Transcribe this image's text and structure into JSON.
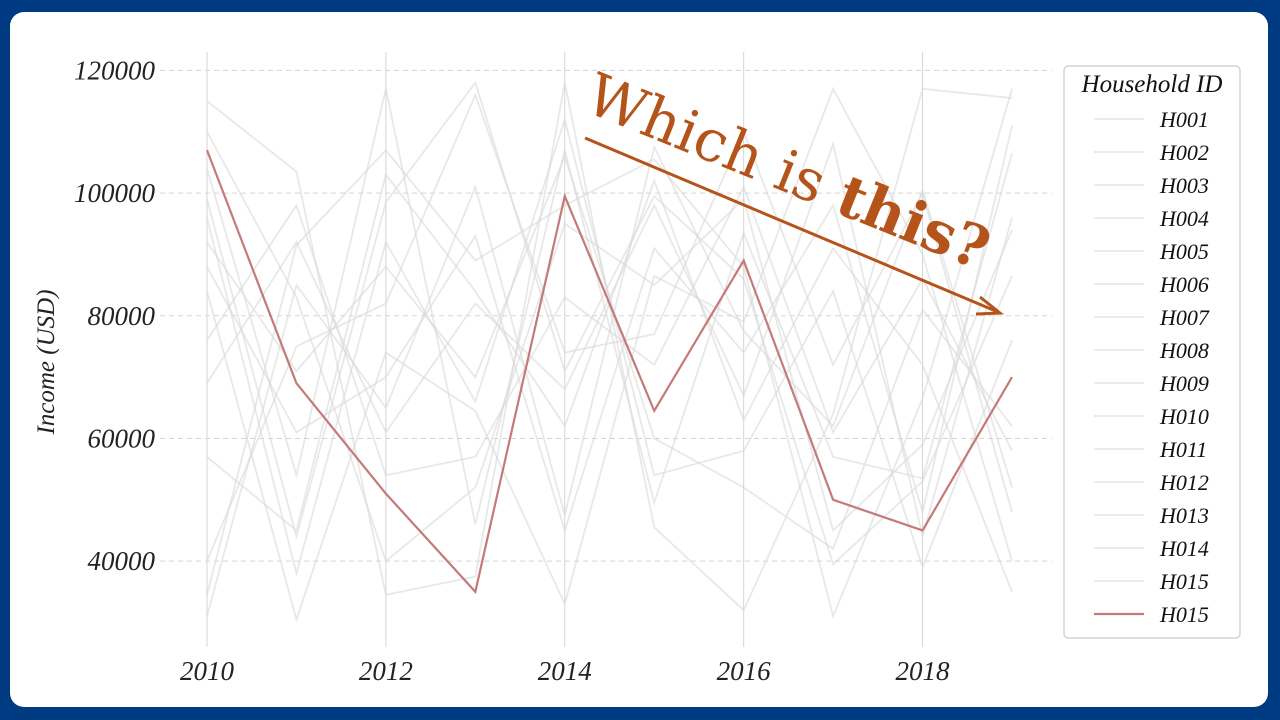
{
  "chart_data": {
    "type": "line",
    "title": "",
    "xlabel": "",
    "ylabel": "Income (USD)",
    "xlim": [
      2010,
      2019
    ],
    "ylim": [
      26000,
      123000
    ],
    "x_ticks": [
      2010,
      2012,
      2014,
      2016,
      2018
    ],
    "y_ticks": [
      40000,
      60000,
      80000,
      100000,
      120000
    ],
    "grid": "y dashed, x solid",
    "legend": {
      "title": "Household ID",
      "placement": "top-right",
      "entries": [
        "H001",
        "H002",
        "H003",
        "H004",
        "H005",
        "H006",
        "H007",
        "H008",
        "H009",
        "H010",
        "H011",
        "H012",
        "H013",
        "H014",
        "H015",
        "H015"
      ]
    },
    "annotation": {
      "text_regular": "Which is ",
      "text_bold": "this?",
      "color": "#b5541a"
    },
    "colors": {
      "background_lines": "#d9d9d9",
      "highlight": "#c47a78",
      "grid": "#d5d5d5",
      "frame": "#003a80"
    },
    "x": [
      2010,
      2011,
      2012,
      2013,
      2014,
      2015,
      2016,
      2017,
      2018,
      2019
    ],
    "highlight_series": {
      "name": "H015",
      "values": [
        107000,
        69000,
        51000,
        35000,
        99500,
        64500,
        89000,
        50000,
        45000,
        70000
      ]
    },
    "series": [
      {
        "name": "H001",
        "values": [
          115000,
          103500,
          34500,
          37500,
          118000,
          45500,
          32000,
          64000,
          117000,
          115500
        ]
      },
      {
        "name": "H002",
        "values": [
          34500,
          91500,
          107000,
          89000,
          98000,
          105500,
          88000,
          31000,
          66500,
          117000
        ]
      },
      {
        "name": "H003",
        "values": [
          99000,
          44000,
          98500,
          118000,
          71000,
          99500,
          86000,
          39500,
          53000,
          86500
        ]
      },
      {
        "name": "H004",
        "values": [
          84000,
          30500,
          74000,
          64500,
          33000,
          86500,
          79000,
          117000,
          90000,
          40000
        ]
      },
      {
        "name": "H005",
        "values": [
          31000,
          85000,
          65000,
          101000,
          47500,
          107500,
          77500,
          62000,
          100500,
          52000
        ]
      },
      {
        "name": "H006",
        "values": [
          104000,
          54000,
          117000,
          46000,
          107000,
          49500,
          93500,
          57000,
          53500,
          106500
        ]
      },
      {
        "name": "H007",
        "values": [
          69000,
          92000,
          61000,
          82000,
          68000,
          98000,
          67000,
          108000,
          44000,
          96000
        ]
      },
      {
        "name": "H008",
        "values": [
          92000,
          71000,
          88000,
          70000,
          106000,
          60000,
          52000,
          42000,
          81000,
          62000
        ]
      },
      {
        "name": "H009",
        "values": [
          40000,
          75000,
          82000,
          116000,
          74000,
          77000,
          110000,
          72000,
          100000,
          48000
        ]
      },
      {
        "name": "H010",
        "values": [
          110000,
          83000,
          40000,
          52000,
          95000,
          85000,
          99000,
          45000,
          59000,
          94000
        ]
      },
      {
        "name": "H011",
        "values": [
          57000,
          45000,
          103000,
          84000,
          62000,
          102000,
          63000,
          91000,
          72000,
          35000
        ]
      },
      {
        "name": "H012",
        "values": [
          88000,
          61000,
          70000,
          93000,
          45000,
          91000,
          74000,
          98000,
          48000,
          111000
        ]
      },
      {
        "name": "H013",
        "values": [
          76000,
          98000,
          54000,
          57000,
          83000,
          72000,
          101000,
          61000,
          86000,
          58000
        ]
      },
      {
        "name": "H014",
        "values": [
          96000,
          38000,
          92000,
          66000,
          112000,
          54000,
          58000,
          84000,
          39000,
          76000
        ]
      }
    ]
  }
}
